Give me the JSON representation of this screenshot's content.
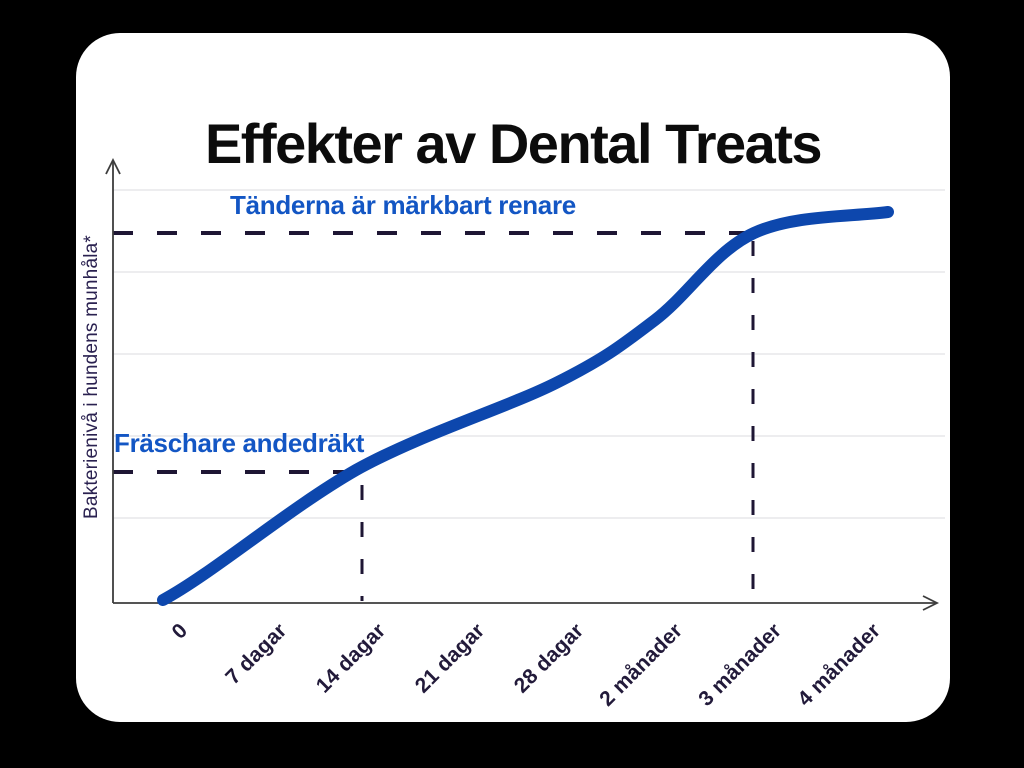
{
  "header": {
    "title": "Effekter av Dental Treats"
  },
  "chart_data": {
    "type": "line",
    "title": "Effekter av Dental Treats",
    "xlabel": "",
    "ylabel": "Bakterienivå i hundens munhåla*",
    "categories": [
      "0",
      "7 dagar",
      "14 dagar",
      "21 dagar",
      "28 dagar",
      "2 månader",
      "3 månader",
      "4 månader"
    ],
    "values": [
      1,
      14,
      34,
      45,
      56,
      72,
      95,
      100
    ],
    "ylim": [
      0,
      100
    ],
    "value_note": "relative scale, no numeric y-axis ticks shown",
    "grid": "horizontal light gray lines, no vertical grid",
    "legend": "none",
    "annotations": [
      {
        "label": "Fräschare andedräkt",
        "at_category": "14 dagar",
        "value": 34
      },
      {
        "label": "Tänderna är märkbart renare",
        "at_category": "3 månader",
        "value": 95
      }
    ]
  },
  "colors": {
    "page_bg": "#000000",
    "card_bg": "#ffffff",
    "title_text": "#0c0c0c",
    "annotation_blue": "#1356c4",
    "curve_blue": "#0d47ad",
    "guide_navy": "#1e1634",
    "tick_navy": "#221a3a",
    "axis_gray": "#3d3d3d",
    "grid_gray": "#e7e7ea"
  }
}
